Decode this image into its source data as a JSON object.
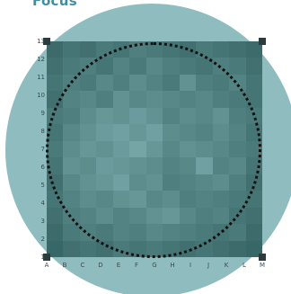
{
  "title": "Focus",
  "board": {
    "row_labels": [
      "13",
      "12",
      "11",
      "10",
      "9",
      "8",
      "7",
      "6",
      "5",
      "4",
      "3",
      "2",
      "1"
    ],
    "col_labels": [
      "A",
      "B",
      "C",
      "D",
      "E",
      "F",
      "G",
      "H",
      "I",
      "J",
      "K",
      "L",
      "M"
    ],
    "colors": {
      "lens": "#8fbcbf",
      "ring": "#111111",
      "base": "#3e6e6f"
    },
    "cell_values": [
      [
        0.15,
        0.25,
        0.2,
        0.3,
        0.25,
        0.35,
        0.3,
        0.25,
        0.2,
        0.3,
        0.25,
        0.2,
        0.15
      ],
      [
        0.2,
        0.3,
        0.35,
        0.25,
        0.4,
        0.3,
        0.45,
        0.35,
        0.3,
        0.25,
        0.35,
        0.3,
        0.2
      ],
      [
        0.25,
        0.35,
        0.3,
        0.45,
        0.35,
        0.5,
        0.4,
        0.3,
        0.55,
        0.35,
        0.3,
        0.4,
        0.25
      ],
      [
        0.2,
        0.4,
        0.45,
        0.35,
        0.55,
        0.45,
        0.5,
        0.45,
        0.4,
        0.45,
        0.35,
        0.3,
        0.25
      ],
      [
        0.3,
        0.35,
        0.5,
        0.6,
        0.55,
        0.65,
        0.55,
        0.4,
        0.5,
        0.45,
        0.55,
        0.35,
        0.3
      ],
      [
        0.25,
        0.45,
        0.55,
        0.65,
        0.7,
        0.6,
        0.7,
        0.5,
        0.45,
        0.4,
        0.5,
        0.4,
        0.25
      ],
      [
        0.3,
        0.5,
        0.6,
        0.55,
        0.65,
        0.75,
        0.6,
        0.45,
        0.55,
        0.5,
        0.45,
        0.35,
        0.3
      ],
      [
        0.25,
        0.55,
        0.5,
        0.65,
        0.6,
        0.55,
        0.5,
        0.4,
        0.45,
        0.7,
        0.4,
        0.45,
        0.25
      ],
      [
        0.2,
        0.45,
        0.55,
        0.6,
        0.7,
        0.5,
        0.55,
        0.35,
        0.4,
        0.45,
        0.5,
        0.35,
        0.2
      ],
      [
        0.25,
        0.4,
        0.5,
        0.45,
        0.55,
        0.6,
        0.45,
        0.5,
        0.35,
        0.4,
        0.35,
        0.3,
        0.25
      ],
      [
        0.2,
        0.35,
        0.4,
        0.5,
        0.4,
        0.45,
        0.55,
        0.6,
        0.45,
        0.35,
        0.4,
        0.25,
        0.2
      ],
      [
        0.15,
        0.3,
        0.35,
        0.3,
        0.4,
        0.35,
        0.45,
        0.4,
        0.35,
        0.3,
        0.25,
        0.3,
        0.15
      ],
      [
        0.1,
        0.2,
        0.25,
        0.2,
        0.3,
        0.25,
        0.3,
        0.25,
        0.2,
        0.25,
        0.2,
        0.15,
        0.1
      ]
    ]
  }
}
